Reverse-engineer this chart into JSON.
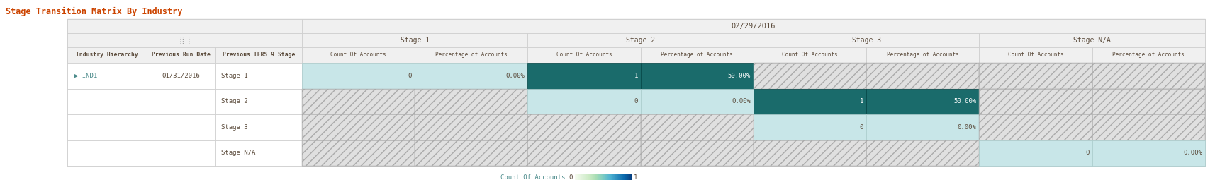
{
  "title": "Stage Transition Matrix By Industry",
  "title_color": "#CC4400",
  "date_header": "02/29/2016",
  "col_groups": [
    "Stage 1",
    "Stage 2",
    "Stage 3",
    "Stage N/A"
  ],
  "col_subheaders": [
    "Count Of Accounts",
    "Percentage of Accounts"
  ],
  "row_headers": [
    "Industry Hierarchy",
    "Previous Run Date",
    "Previous IFRS 9 Stage"
  ],
  "industry": "IND1",
  "run_date": "01/31/2016",
  "stages": [
    "Stage 1",
    "Stage 2",
    "Stage 3",
    "Stage N/A"
  ],
  "data": [
    [
      0,
      "0.00%",
      1,
      "50.00%",
      null,
      null,
      null,
      null
    ],
    [
      null,
      null,
      0,
      "0.00%",
      1,
      "50.00%",
      null,
      null
    ],
    [
      null,
      null,
      null,
      null,
      0,
      "0.00%",
      null,
      null
    ],
    [
      null,
      null,
      null,
      null,
      null,
      null,
      0,
      "0.00%"
    ]
  ],
  "cell_colors": [
    [
      "light_teal",
      "light_teal",
      "dark_teal",
      "dark_teal",
      "hatched",
      "hatched",
      "hatched",
      "hatched"
    ],
    [
      "hatched",
      "hatched",
      "light_teal",
      "light_teal",
      "dark_teal",
      "dark_teal",
      "hatched",
      "hatched"
    ],
    [
      "hatched",
      "hatched",
      "hatched",
      "hatched",
      "light_teal",
      "light_teal",
      "hatched",
      "hatched"
    ],
    [
      "hatched",
      "hatched",
      "hatched",
      "hatched",
      "hatched",
      "hatched",
      "light_teal",
      "light_teal"
    ]
  ],
  "light_teal": "#c8e6e8",
  "dark_teal": "#1a6b6b",
  "header_bg": "#f0f0f0",
  "text_color_dark": "#5a4a3a",
  "text_color_teal": "#4a8a8a",
  "legend_label": "Count Of Accounts",
  "legend_min": "0",
  "legend_max": "1"
}
